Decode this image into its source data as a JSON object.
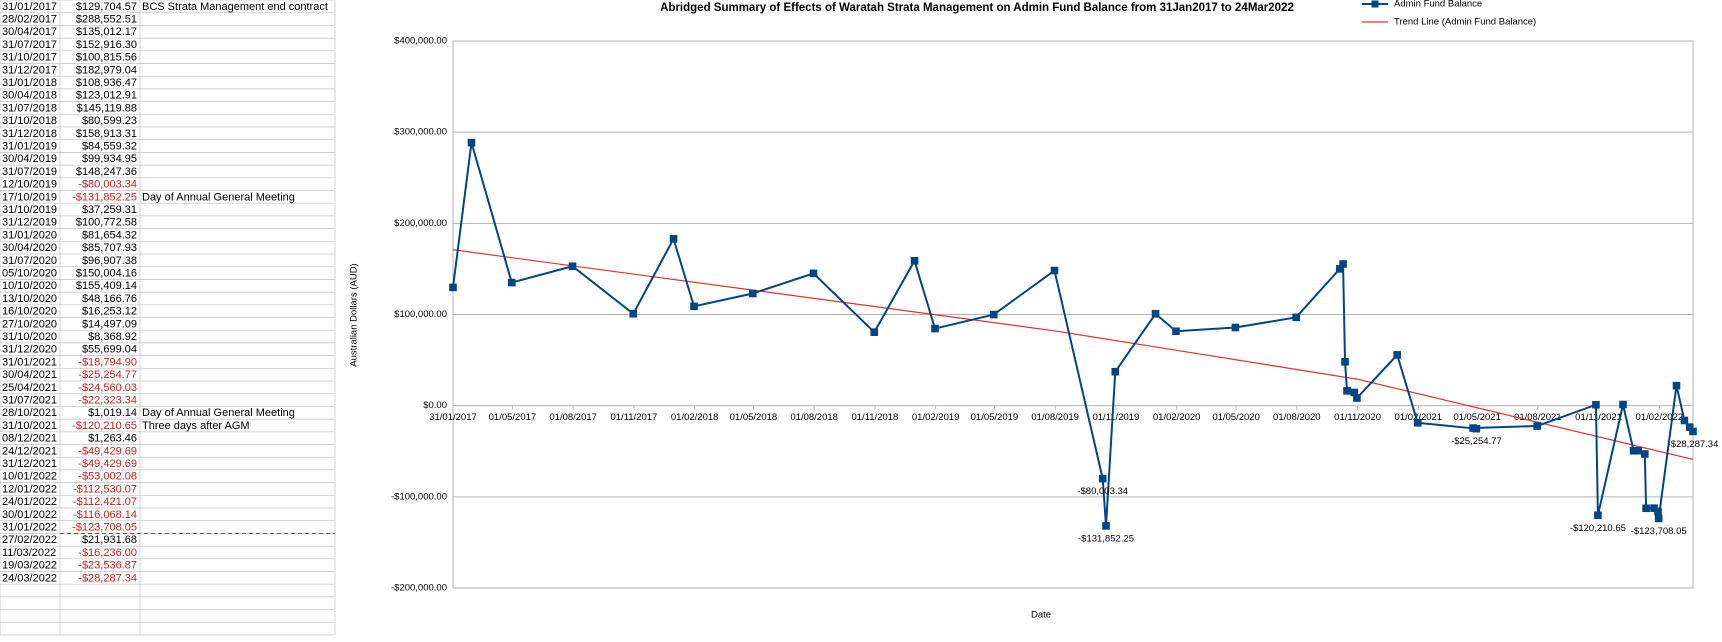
{
  "table": {
    "rows": [
      [
        "31/01/2017",
        "$129,704.57",
        "BCS Strata Management end contract"
      ],
      [
        "28/02/2017",
        "$288,552.51"
      ],
      [
        "30/04/2017",
        "$135,012.17"
      ],
      [
        "31/07/2017",
        "$152,916.30"
      ],
      [
        "31/10/2017",
        "$100,815.56"
      ],
      [
        "31/12/2017",
        "$182,979.04"
      ],
      [
        "31/01/2018",
        "$108,936.47"
      ],
      [
        "30/04/2018",
        "$123,012.91"
      ],
      [
        "31/07/2018",
        "$145,119.88"
      ],
      [
        "31/10/2018",
        "$80,599.23"
      ],
      [
        "31/12/2018",
        "$158,913.31"
      ],
      [
        "31/01/2019",
        "$84,559.32"
      ],
      [
        "30/04/2019",
        "$99,934.95"
      ],
      [
        "31/07/2019",
        "$148,247.36"
      ],
      [
        "12/10/2019",
        "-$80,003.34"
      ],
      [
        "17/10/2019",
        "-$131,852.25",
        "Day of Annual General Meeting"
      ],
      [
        "31/10/2019",
        "$37,259.31"
      ],
      [
        "31/12/2019",
        "$100,772.58"
      ],
      [
        "31/01/2020",
        "$81,654.32"
      ],
      [
        "30/04/2020",
        "$85,707.93"
      ],
      [
        "31/07/2020",
        "$96,907.38"
      ],
      [
        "05/10/2020",
        "$150,004.16"
      ],
      [
        "10/10/2020",
        "$155,409.14"
      ],
      [
        "13/10/2020",
        "$48,166.76"
      ],
      [
        "16/10/2020",
        "$16,253.12"
      ],
      [
        "27/10/2020",
        "$14,497.09"
      ],
      [
        "31/10/2020",
        "$8,368.92"
      ],
      [
        "31/12/2020",
        "$55,699.04"
      ],
      [
        "31/01/2021",
        "-$18,794.90"
      ],
      [
        "30/04/2021",
        "-$25,254.77"
      ],
      [
        "25/04/2021",
        "-$24,560.03"
      ],
      [
        "31/07/2021",
        "-$22,323.34"
      ],
      [
        "28/10/2021",
        "$1,019.14",
        "Day of Annual General Meeting"
      ],
      [
        "31/10/2021",
        "-$120,210.65",
        "Three days after AGM"
      ],
      [
        "08/12/2021",
        "$1,263.46"
      ],
      [
        "24/12/2021",
        "-$49,429.69"
      ],
      [
        "31/12/2021",
        "-$49,429.69"
      ],
      [
        "10/01/2022",
        "-$53,002.08"
      ],
      [
        "12/01/2022",
        "-$112,530.07"
      ],
      [
        "24/01/2022",
        "-$112,421.07"
      ],
      [
        "30/01/2022",
        "-$116,068.14"
      ],
      [
        "31/01/2022",
        "-$123,708.05"
      ],
      [
        "27/02/2022",
        "$21,931.68"
      ],
      [
        "11/03/2022",
        "-$16,236.00"
      ],
      [
        "19/03/2022",
        "-$23,536.87"
      ],
      [
        "24/03/2022",
        "-$28,287.34"
      ]
    ]
  },
  "chart_data": {
    "type": "line",
    "title": "Abridged Summary of Effects of Waratah Strata Management on Admin Fund Balance from 31Jan2017 to 24Mar2022",
    "x_label": "Date",
    "y_label": "Australian Dollars (AUD)",
    "x": [
      "31/01/2017",
      "28/02/2017",
      "30/04/2017",
      "31/07/2017",
      "31/10/2017",
      "31/12/2017",
      "31/01/2018",
      "30/04/2018",
      "31/07/2018",
      "31/10/2018",
      "31/12/2018",
      "31/01/2019",
      "30/04/2019",
      "31/07/2019",
      "12/10/2019",
      "17/10/2019",
      "31/10/2019",
      "31/12/2019",
      "31/01/2020",
      "30/04/2020",
      "31/07/2020",
      "05/10/2020",
      "10/10/2020",
      "13/10/2020",
      "16/10/2020",
      "27/10/2020",
      "31/10/2020",
      "31/12/2020",
      "31/01/2021",
      "30/04/2021",
      "25/04/2021",
      "31/07/2021",
      "28/10/2021",
      "31/10/2021",
      "08/12/2021",
      "24/12/2021",
      "31/12/2021",
      "10/01/2022",
      "12/01/2022",
      "24/01/2022",
      "30/01/2022",
      "31/01/2022",
      "27/02/2022",
      "11/03/2022",
      "19/03/2022",
      "24/03/2022"
    ],
    "series": [
      {
        "name": "Admin Fund Balance",
        "color": "#004586",
        "values": [
          129704.57,
          288552.51,
          135012.17,
          152916.3,
          100815.56,
          182979.04,
          108936.47,
          123012.91,
          145119.88,
          80599.23,
          158913.31,
          84559.32,
          99934.95,
          148247.36,
          -80003.34,
          -131852.25,
          37259.31,
          100772.58,
          81654.32,
          85707.93,
          96907.38,
          150004.16,
          155409.14,
          48166.76,
          16253.12,
          14497.09,
          8368.92,
          55699.04,
          -18794.9,
          -25254.77,
          -24560.03,
          -22323.34,
          1019.14,
          -120210.65,
          1263.46,
          -49429.69,
          -49429.69,
          -53002.08,
          -112530.07,
          -112421.07,
          -116068.14,
          -123708.05,
          21931.68,
          -16236.0,
          -23536.87,
          -28287.34
        ],
        "value_labels": [
          null,
          null,
          null,
          null,
          null,
          null,
          null,
          null,
          null,
          null,
          null,
          null,
          null,
          null,
          "-$80,003.34",
          "-$131,852.25",
          null,
          null,
          null,
          null,
          null,
          null,
          null,
          null,
          null,
          null,
          null,
          null,
          null,
          "-$25,254.77",
          null,
          null,
          null,
          "-$120,210.65",
          null,
          null,
          null,
          null,
          null,
          null,
          null,
          "-$123,708.05",
          null,
          null,
          null,
          "-$28,287.34"
        ]
      }
    ],
    "trend": {
      "name": "Trend Line (Admin Fund Balance)",
      "color": "#e0312c",
      "x": [
        "31/01/2017",
        "01/08/2019",
        "01/11/2020",
        "24/03/2022"
      ],
      "values": [
        171000,
        82000,
        29000,
        -59000
      ]
    },
    "label_color": "#c9211e",
    "xlim": [
      "31/01/2017",
      "24/03/2022"
    ],
    "xticks": [
      "31/01/2017",
      "01/05/2017",
      "01/08/2017",
      "01/11/2017",
      "01/02/2018",
      "01/05/2018",
      "01/08/2018",
      "01/11/2018",
      "01/02/2019",
      "01/05/2019",
      "01/08/2019",
      "01/11/2019",
      "01/02/2020",
      "01/05/2020",
      "01/08/2020",
      "01/11/2020",
      "01/02/2021",
      "01/05/2021",
      "01/08/2021",
      "01/11/2021",
      "01/02/2022"
    ],
    "ylim": [
      -200000,
      400000
    ],
    "yticks": [
      {
        "value": -200000,
        "label": "-$200,000.00"
      },
      {
        "value": -100000,
        "label": "-$100,000.00"
      },
      {
        "value": 0,
        "label": "$0.00"
      },
      {
        "value": 100000,
        "label": "$100,000.00"
      },
      {
        "value": 200000,
        "label": "$200,000.00"
      },
      {
        "value": 300000,
        "label": "$300,000.00"
      },
      {
        "value": 400000,
        "label": "$400,000.00"
      }
    ],
    "grid": true,
    "legend": "top-right"
  }
}
